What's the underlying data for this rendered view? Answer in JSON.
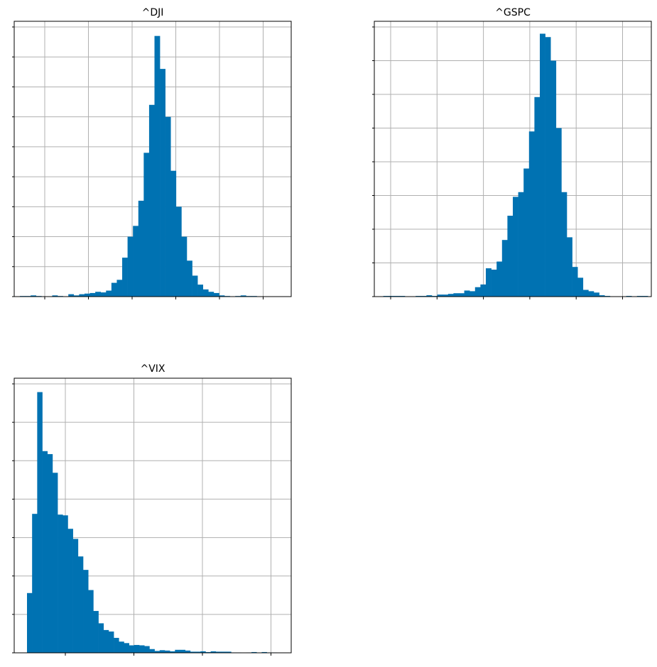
{
  "figure": {
    "bar_color": "#0072B2",
    "grid_color": "#b0b0b0"
  },
  "chart_data": [
    {
      "type": "bar",
      "title": "^DJI",
      "xlabel": "",
      "ylabel": "",
      "grid": true,
      "ylim": [
        0,
        450
      ],
      "x_tick_count": 6,
      "y_tick_count": 9,
      "values": [
        1,
        1,
        2,
        1,
        0,
        0,
        2,
        1,
        0,
        4,
        2,
        4,
        5,
        6,
        8,
        7,
        10,
        23,
        28,
        65,
        100,
        118,
        160,
        240,
        320,
        435,
        380,
        300,
        210,
        150,
        100,
        60,
        35,
        20,
        12,
        8,
        6,
        2,
        1,
        0,
        1,
        2,
        1,
        1,
        0,
        0,
        0,
        0,
        0,
        0
      ]
    },
    {
      "type": "bar",
      "title": "^GSPC",
      "xlabel": "",
      "ylabel": "",
      "grid": true,
      "ylim": [
        0,
        400
      ],
      "x_tick_count": 6,
      "y_tick_count": 8,
      "values": [
        0,
        1,
        1,
        1,
        1,
        0,
        0,
        1,
        1,
        2,
        1,
        3,
        3,
        4,
        5,
        5,
        9,
        8,
        14,
        18,
        42,
        40,
        52,
        84,
        120,
        148,
        155,
        190,
        245,
        296,
        390,
        385,
        350,
        250,
        155,
        88,
        44,
        28,
        10,
        8,
        6,
        2,
        1,
        0,
        0,
        0,
        1,
        0,
        1,
        1
      ]
    },
    {
      "type": "bar",
      "title": "^VIX",
      "xlabel": "",
      "ylabel": "",
      "grid": true,
      "ylim": [
        0,
        720
      ],
      "x_tick_count": 4,
      "y_tick_count": 7,
      "values": [
        160,
        372,
        698,
        540,
        532,
        482,
        370,
        368,
        332,
        305,
        258,
        222,
        168,
        112,
        79,
        61,
        57,
        40,
        30,
        26,
        20,
        21,
        20,
        18,
        10,
        5,
        7,
        6,
        4,
        8,
        8,
        6,
        3,
        3,
        4,
        2,
        4,
        3,
        3,
        3,
        1,
        1,
        0,
        1,
        2,
        0,
        2,
        1,
        1
      ]
    }
  ]
}
